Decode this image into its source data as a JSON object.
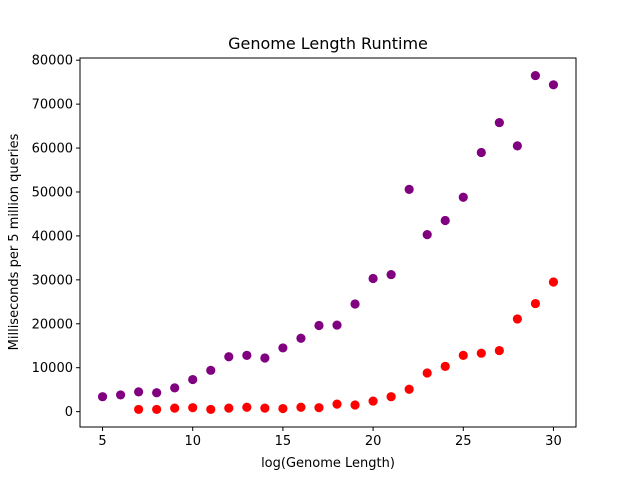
{
  "chart_data": {
    "type": "scatter",
    "title": "Genome Length Runtime",
    "xlabel": "log(Genome Length)",
    "ylabel": "Milliseconds per 5 million queries",
    "xlim": [
      3.75,
      31.25
    ],
    "ylim": [
      -3500,
      80500
    ],
    "xticks": [
      5,
      10,
      15,
      20,
      25,
      30
    ],
    "yticks": [
      0,
      10000,
      20000,
      30000,
      40000,
      50000,
      60000,
      70000,
      80000
    ],
    "grid": false,
    "series": [
      {
        "color": "#800080",
        "points": [
          [
            5,
            3400
          ],
          [
            6,
            3800
          ],
          [
            7,
            4500
          ],
          [
            8,
            4300
          ],
          [
            9,
            5400
          ],
          [
            10,
            7300
          ],
          [
            11,
            9400
          ],
          [
            12,
            12500
          ],
          [
            13,
            12800
          ],
          [
            14,
            12200
          ],
          [
            15,
            14500
          ],
          [
            16,
            16700
          ],
          [
            17,
            19600
          ],
          [
            18,
            19700
          ],
          [
            19,
            24500
          ],
          [
            20,
            30300
          ],
          [
            21,
            31200
          ],
          [
            22,
            50600
          ],
          [
            23,
            40300
          ],
          [
            24,
            43500
          ],
          [
            25,
            48800
          ],
          [
            26,
            59000
          ],
          [
            27,
            65800
          ],
          [
            28,
            60500
          ],
          [
            29,
            76500
          ],
          [
            30,
            74400
          ]
        ]
      },
      {
        "color": "#ff0000",
        "points": [
          [
            7,
            500
          ],
          [
            8,
            500
          ],
          [
            9,
            800
          ],
          [
            10,
            900
          ],
          [
            11,
            500
          ],
          [
            12,
            800
          ],
          [
            13,
            1000
          ],
          [
            14,
            800
          ],
          [
            15,
            700
          ],
          [
            16,
            1000
          ],
          [
            17,
            900
          ],
          [
            18,
            1700
          ],
          [
            19,
            1500
          ],
          [
            20,
            2400
          ],
          [
            21,
            3400
          ],
          [
            22,
            5100
          ],
          [
            23,
            8800
          ],
          [
            24,
            10300
          ],
          [
            25,
            12800
          ],
          [
            26,
            13300
          ],
          [
            27,
            13900
          ],
          [
            28,
            21100
          ],
          [
            29,
            24600
          ],
          [
            30,
            29500
          ]
        ]
      }
    ]
  }
}
